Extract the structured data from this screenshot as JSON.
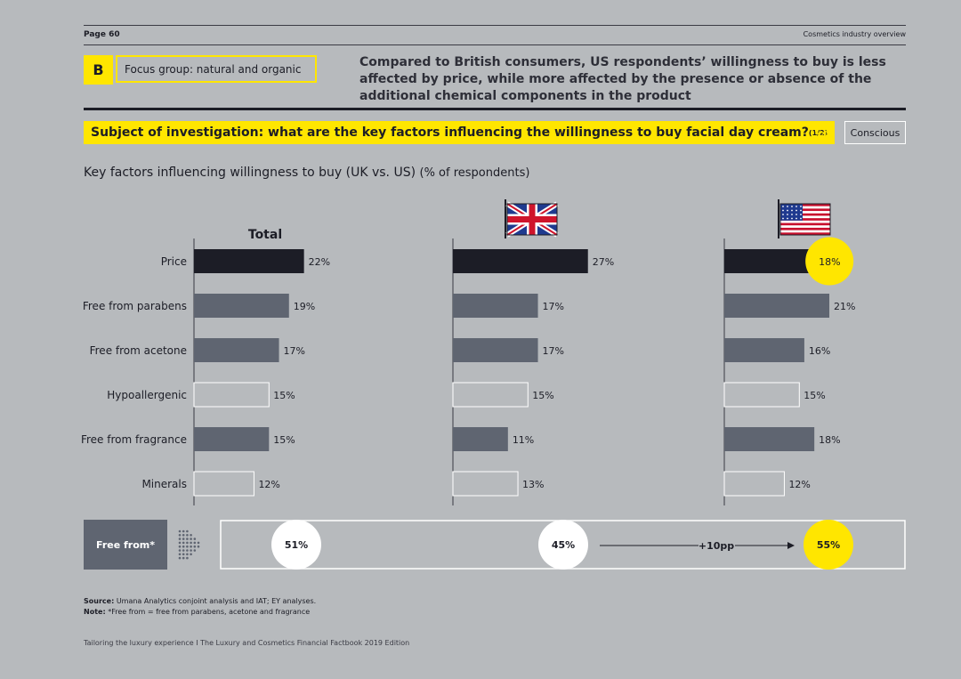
{
  "header": {
    "page_number": "Page 60",
    "section_name": "Cosmetics industry overview"
  },
  "section": {
    "letter": "B",
    "title": "Focus group: natural and organic"
  },
  "headline": "Compared to British consumers, US respondents’ willingness to buy is less affected by price, while more affected by the presence or absence of the additional chemical components in the product",
  "subject": {
    "text": "Subject of investigation: what are the key factors influencing the willingness to buy facial day cream?",
    "part": "(1/2)"
  },
  "tag": {
    "label": "Conscious",
    "icon": "brain-icon"
  },
  "chart_title": {
    "main": "Key factors influencing willingness to buy (UK vs. US)",
    "unit": "(% of respondents)"
  },
  "chart_data": {
    "type": "bar",
    "orientation": "horizontal",
    "categories": [
      "Price",
      "Free from parabens",
      "Free from acetone",
      "Hypoallergenic",
      "Free from fragrance",
      "Minerals"
    ],
    "series": [
      {
        "name": "Total",
        "values": [
          22,
          19,
          17,
          15,
          15,
          12
        ]
      },
      {
        "name": "",
        "icon": "uk-flag-icon",
        "values": [
          27,
          17,
          17,
          15,
          11,
          13
        ]
      },
      {
        "name": "",
        "icon": "us-flag-icon",
        "values": [
          18,
          21,
          16,
          15,
          18,
          12
        ]
      }
    ],
    "value_suffix": "%",
    "highlight": {
      "series": 2,
      "category": 0,
      "color": "#ffe600"
    },
    "colors": {
      "dark": "#1c1d26",
      "medium": "#5f6571",
      "light": "#b7babd",
      "highlight": "#ffe600"
    },
    "summary": {
      "label": "Free from*",
      "values": [
        "51%",
        "45%",
        "55%"
      ],
      "change": "+10pp"
    }
  },
  "source": {
    "label": "Source:",
    "text": "Umana Analytics conjoint analysis and IAT; EY analyses.",
    "note_label": "Note:",
    "note_text": "*Free from = free from parabens, acetone and fragrance"
  },
  "footer": "Tailoring the luxury experience I The Luxury and Cosmetics Financial Factbook 2019 Edition"
}
